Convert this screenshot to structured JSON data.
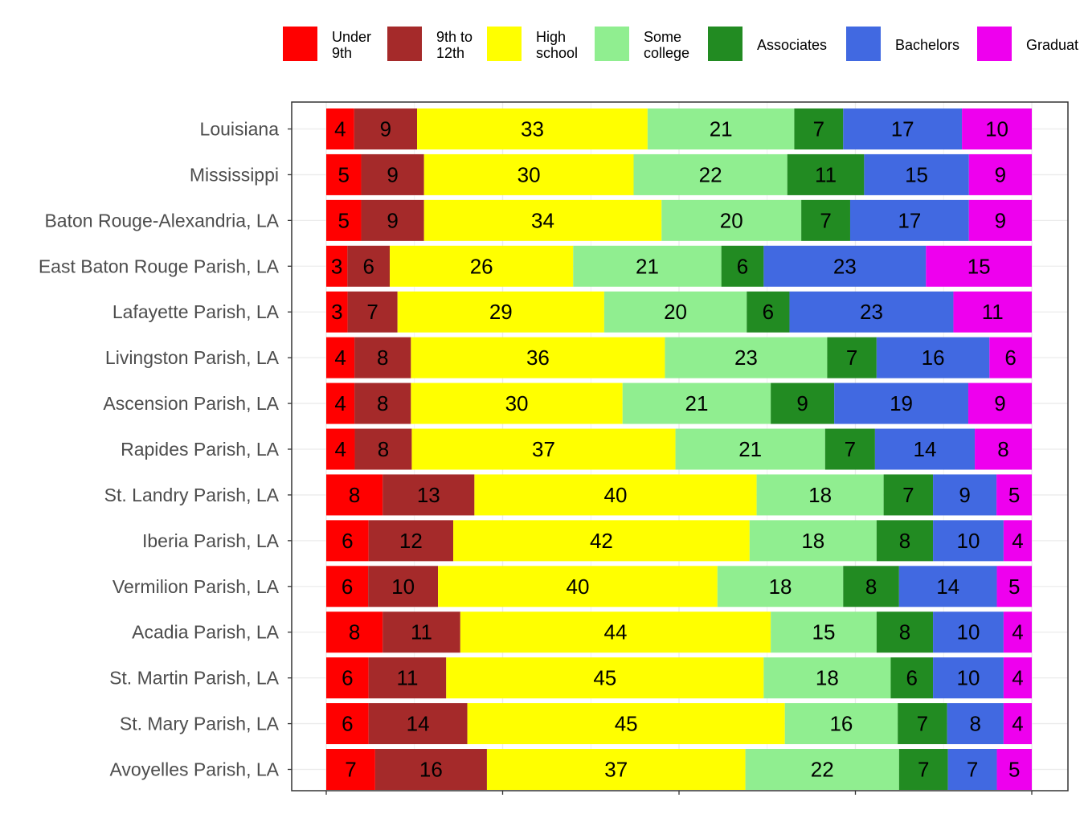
{
  "chart_data": {
    "type": "bar",
    "orientation": "horizontal",
    "stacked": true,
    "normalized": true,
    "xlim": [
      0,
      1
    ],
    "grid": true,
    "legend_position": "top",
    "categories": [
      "Louisiana",
      "Mississippi",
      "Baton Rouge-Alexandria, LA",
      "East Baton Rouge Parish, LA",
      "Lafayette Parish, LA",
      "Livingston Parish, LA",
      "Ascension Parish, LA",
      "Rapides Parish, LA",
      "St. Landry Parish, LA",
      "Iberia Parish, LA",
      "Vermilion Parish, LA",
      "Acadia Parish, LA",
      "St. Martin Parish, LA",
      "St. Mary Parish, LA",
      "Avoyelles Parish, LA"
    ],
    "series": [
      {
        "name": "Under 9th",
        "legend_lines": [
          "Under",
          "9th"
        ],
        "color": "#ff0000",
        "values": [
          4,
          5,
          5,
          3,
          3,
          4,
          4,
          4,
          8,
          6,
          6,
          8,
          6,
          6,
          7
        ]
      },
      {
        "name": "9th to 12th",
        "legend_lines": [
          "9th to",
          "12th"
        ],
        "color": "#a52a2a",
        "values": [
          9,
          9,
          9,
          6,
          7,
          8,
          8,
          8,
          13,
          12,
          10,
          11,
          11,
          14,
          16
        ]
      },
      {
        "name": "High school",
        "legend_lines": [
          "High",
          "school"
        ],
        "color": "#ffff00",
        "values": [
          33,
          30,
          34,
          26,
          29,
          36,
          30,
          37,
          40,
          42,
          40,
          44,
          45,
          45,
          37
        ]
      },
      {
        "name": "Some college",
        "legend_lines": [
          "Some",
          "college"
        ],
        "color": "#90ee90",
        "values": [
          21,
          22,
          20,
          21,
          20,
          23,
          21,
          21,
          18,
          18,
          18,
          15,
          18,
          16,
          22
        ]
      },
      {
        "name": "Associates",
        "legend_lines": [
          "Associates"
        ],
        "color": "#228b22",
        "values": [
          7,
          11,
          7,
          6,
          6,
          7,
          9,
          7,
          7,
          8,
          8,
          8,
          6,
          7,
          7
        ]
      },
      {
        "name": "Bachelors",
        "legend_lines": [
          "Bachelors"
        ],
        "color": "#4169e1",
        "values": [
          17,
          15,
          17,
          23,
          23,
          16,
          19,
          14,
          9,
          10,
          14,
          10,
          10,
          8,
          7
        ]
      },
      {
        "name": "Graduate",
        "legend_lines": [
          "Graduat"
        ],
        "color": "#ee00ee",
        "values": [
          10,
          9,
          9,
          15,
          11,
          6,
          9,
          8,
          5,
          4,
          5,
          4,
          4,
          4,
          5
        ]
      }
    ]
  }
}
